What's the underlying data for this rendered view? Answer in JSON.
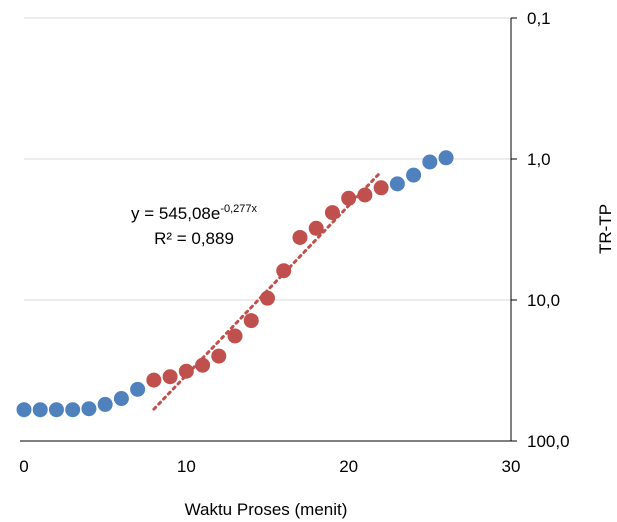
{
  "chart_data": {
    "type": "scatter",
    "title": "",
    "xlabel": "Waktu Proses (menit)",
    "ylabel": "TR-TP",
    "x_ticks": [
      "0",
      "10",
      "20",
      "30"
    ],
    "y_ticks": [
      "0,1",
      "1,0",
      "10,0",
      "100,0"
    ],
    "xlim": [
      0,
      30
    ],
    "ylim": [
      0.1,
      100
    ],
    "y_scale": "log",
    "y_reversed": true,
    "y_axis_position": "right",
    "grid": "horizontal",
    "legend": "none",
    "series": [
      {
        "color": "#4f81bd",
        "points": [
          {
            "x": 0,
            "y": 60
          },
          {
            "x": 1,
            "y": 60
          },
          {
            "x": 2,
            "y": 60
          },
          {
            "x": 3,
            "y": 60
          },
          {
            "x": 4,
            "y": 59
          },
          {
            "x": 5,
            "y": 55
          },
          {
            "x": 6,
            "y": 50
          },
          {
            "x": 7,
            "y": 43
          },
          {
            "x": 23,
            "y": 1.5
          },
          {
            "x": 24,
            "y": 1.3
          },
          {
            "x": 25,
            "y": 1.05
          },
          {
            "x": 26,
            "y": 0.98
          }
        ]
      },
      {
        "color": "#c0504d",
        "points": [
          {
            "x": 8,
            "y": 37
          },
          {
            "x": 9,
            "y": 35
          },
          {
            "x": 10,
            "y": 32
          },
          {
            "x": 11,
            "y": 29
          },
          {
            "x": 12,
            "y": 25
          },
          {
            "x": 13,
            "y": 18
          },
          {
            "x": 14,
            "y": 14
          },
          {
            "x": 15,
            "y": 9.7
          },
          {
            "x": 16,
            "y": 6.2
          },
          {
            "x": 17,
            "y": 3.6
          },
          {
            "x": 18,
            "y": 3.1
          },
          {
            "x": 19,
            "y": 2.4
          },
          {
            "x": 20,
            "y": 1.9
          },
          {
            "x": 21,
            "y": 1.8
          },
          {
            "x": 22,
            "y": 1.6
          }
        ]
      }
    ],
    "trendline": {
      "type": "exponential",
      "color": "#c0504d",
      "x_range": [
        8,
        22
      ],
      "a": 545.08,
      "b": -0.277
    },
    "annotation": {
      "equation_main": "y = 545,08e",
      "equation_exponent": "-0,277x",
      "r_squared": "R² = 0,889"
    }
  }
}
